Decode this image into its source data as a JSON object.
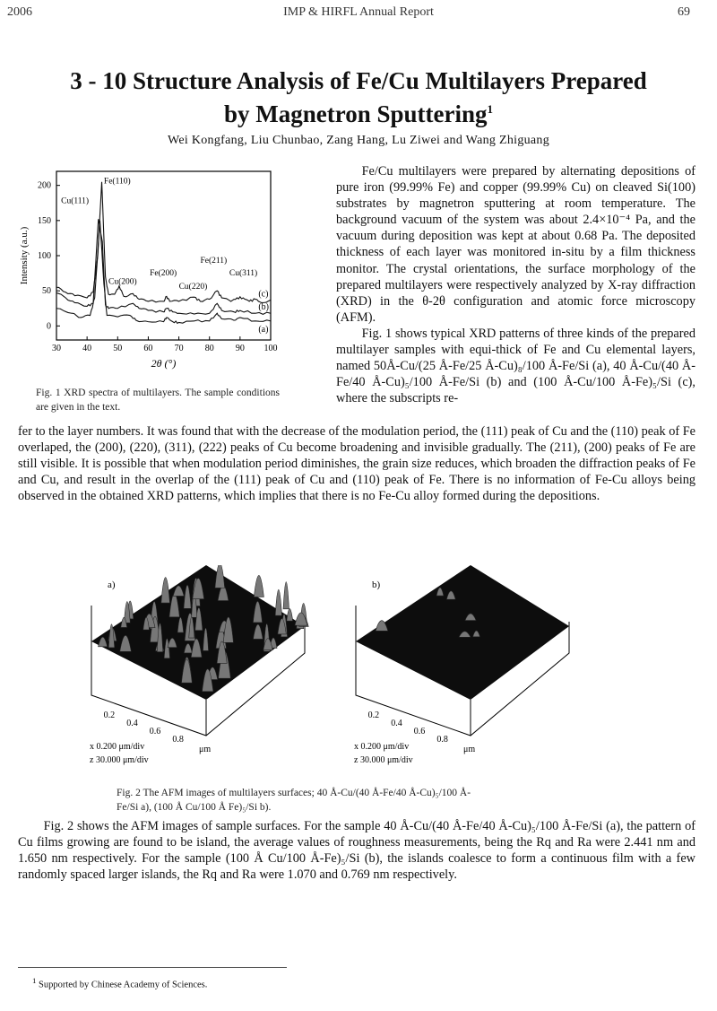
{
  "header": {
    "year": "2006",
    "journal": "IMP & HIRFL Annual Report",
    "page": "69"
  },
  "title": {
    "line1": "3 - 10   Structure Analysis of Fe/Cu Multilayers Prepared",
    "line2": "by Magnetron Sputtering",
    "footnote_mark": "1"
  },
  "authors": "Wei Kongfang, Liu Chunbao, Zang Hang, Lu Ziwei and Wang Zhiguang",
  "body": {
    "p1": "Fe/Cu multilayers were prepared by alternating depositions of pure iron (99.99% Fe) and copper (99.99% Cu) on cleaved Si(100) substrates by magnetron sputtering at room temperature. The background vacuum of the system was about 2.4×10⁻⁴ Pa, and the vacuum during deposition was kept at about 0.68 Pa. The deposited thickness of each layer was monitored in-situ by a film thickness monitor. The crystal orientations, the surface morphology of the prepared multilayers were respectively analyzed by X-ray diffraction (XRD) in the θ-2θ configuration and atomic force microscopy (AFM).",
    "p2_col": "Fig. 1 shows typical XRD patterns of three kinds of the prepared multilayer samples with equi-thick of Fe and Cu elemental layers, named 50Å-Cu/(25 Å-Fe/25 Å-Cu)₈/100 Å-Fe/Si (a), 40 Å-Cu/(40 Å-Fe/40 Å-Cu)₅/100 Å-Fe/Si (b) and (100 Å-Cu/100 Å-Fe)₅/Si (c), where the subscripts re-",
    "p2_full": "fer to the layer numbers. It was found that with the decrease of the modulation period, the (111) peak of Cu and the (110) peak of Fe overlaped, the (200), (220), (311), (222) peaks of Cu become broadening and invisible gradually. The (211), (200) peaks of Fe are still visible. It is possible that when modulation period diminishes, the grain size reduces, which broaden the diffraction peaks of Fe and Cu, and result in the overlap of the (111) peak of Cu and (110) peak of Fe. There is no information of Fe-Cu alloys being observed in the obtained XRD patterns, which implies that there is no Fe-Cu alloy formed during the depositions.",
    "p3": "Fig. 2 shows the AFM images of sample surfaces. For the sample 40 Å-Cu/(40 Å-Fe/40 Å-Cu)₅/100 Å-Fe/Si (a), the pattern of Cu films growing are found to be island, the average values of roughness measurements, being the Rq and Ra were 2.441 nm and 1.650 nm respectively. For the sample (100 Å Cu/100 Å-Fe)₅/Si (b), the islands coalesce to form a continuous film with a few randomly spaced larger islands, the Rq and Ra were 1.070 and 0.769 nm respectively."
  },
  "fig1": {
    "caption": "Fig. 1   XRD spectra of multilayers. The sample conditions are given in the text."
  },
  "fig2": {
    "caption_line1": "Fig. 2   The AFM images of multilayers surfaces; 40 Å-Cu/(40 Å-Fe/40 Å-Cu)₅/100 Å-",
    "caption_line2": "Fe/Si a), (100 Å Cu/100 Å Fe)₅/Si b).",
    "panels": [
      {
        "label": "a)",
        "ticks": [
          "0.2",
          "0.4",
          "0.6",
          "0.8"
        ],
        "unit": "μm",
        "xscale": "x  0.200 μm/div",
        "zscale": "z  30.000 μm/div",
        "roughness": "high"
      },
      {
        "label": "b)",
        "ticks": [
          "0.2",
          "0.4",
          "0.6",
          "0.8"
        ],
        "unit": "μm",
        "xscale": "x  0.200 μm/div",
        "zscale": "z  30.000 μm/div",
        "roughness": "low"
      }
    ]
  },
  "footnote": {
    "mark": "1",
    "text": "Supported by Chinese Academy of Sciences."
  },
  "chart_data": {
    "type": "line",
    "title": "",
    "xlabel": "2θ (°)",
    "ylabel": "Intensity (a.u.)",
    "xlim": [
      30,
      100
    ],
    "ylim": [
      -20,
      220
    ],
    "xticks": [
      30,
      40,
      50,
      60,
      70,
      80,
      90,
      100
    ],
    "yticks": [
      0,
      50,
      100,
      150,
      200
    ],
    "grid": false,
    "series": [
      {
        "name": "(c)",
        "points": [
          [
            30,
            55
          ],
          [
            33,
            48
          ],
          [
            36,
            43
          ],
          [
            40,
            40
          ],
          [
            42,
            48
          ],
          [
            43.5,
            100
          ],
          [
            44.8,
            205
          ],
          [
            46,
            70
          ],
          [
            47,
            45
          ],
          [
            49,
            45
          ],
          [
            50.5,
            57
          ],
          [
            52,
            42
          ],
          [
            55,
            46
          ],
          [
            57,
            38
          ],
          [
            60,
            35
          ],
          [
            65,
            35
          ],
          [
            66,
            42
          ],
          [
            67,
            35
          ],
          [
            70,
            35
          ],
          [
            75,
            41
          ],
          [
            77,
            35
          ],
          [
            80,
            38
          ],
          [
            82.5,
            50
          ],
          [
            84,
            40
          ],
          [
            87,
            35
          ],
          [
            89,
            40
          ],
          [
            91,
            40
          ],
          [
            93,
            35
          ],
          [
            95,
            38
          ],
          [
            97,
            33
          ],
          [
            100,
            37
          ]
        ]
      },
      {
        "name": "(b)",
        "points": [
          [
            30,
            47
          ],
          [
            33,
            40
          ],
          [
            36,
            33
          ],
          [
            40,
            28
          ],
          [
            42,
            32
          ],
          [
            43.7,
            152
          ],
          [
            45,
            120
          ],
          [
            46,
            30
          ],
          [
            47,
            25
          ],
          [
            50,
            25
          ],
          [
            55,
            32
          ],
          [
            57,
            25
          ],
          [
            60,
            22
          ],
          [
            65,
            20
          ],
          [
            66,
            25
          ],
          [
            68,
            20
          ],
          [
            70,
            18
          ],
          [
            75,
            17
          ],
          [
            80,
            18
          ],
          [
            82.5,
            32
          ],
          [
            84,
            22
          ],
          [
            88,
            20
          ],
          [
            90,
            22
          ],
          [
            95,
            18
          ],
          [
            100,
            18
          ]
        ]
      },
      {
        "name": "(a)",
        "points": [
          [
            30,
            25
          ],
          [
            35,
            18
          ],
          [
            38,
            12
          ],
          [
            41,
            15
          ],
          [
            42.5,
            40
          ],
          [
            44.2,
            150
          ],
          [
            45.5,
            60
          ],
          [
            46.5,
            15
          ],
          [
            50,
            13
          ],
          [
            54,
            15
          ],
          [
            56,
            8
          ],
          [
            60,
            6
          ],
          [
            65,
            6
          ],
          [
            66,
            12
          ],
          [
            68,
            6
          ],
          [
            70,
            5
          ],
          [
            75,
            7
          ],
          [
            80,
            7
          ],
          [
            82.5,
            18
          ],
          [
            84,
            10
          ],
          [
            88,
            8
          ],
          [
            90,
            12
          ],
          [
            95,
            7
          ],
          [
            100,
            7
          ]
        ]
      }
    ],
    "annotations": [
      {
        "text": "Fe(110)",
        "x": 45.5,
        "y": 203
      },
      {
        "text": "Cu(111)",
        "x": 31.5,
        "y": 175
      },
      {
        "text": "Cu(200)",
        "x": 47,
        "y": 60
      },
      {
        "text": "Fe(200)",
        "x": 60.5,
        "y": 72
      },
      {
        "text": "Cu(220)",
        "x": 70,
        "y": 53
      },
      {
        "text": "Fe(211)",
        "x": 77,
        "y": 90
      },
      {
        "text": "Cu(311)",
        "x": 86.5,
        "y": 72
      }
    ]
  }
}
